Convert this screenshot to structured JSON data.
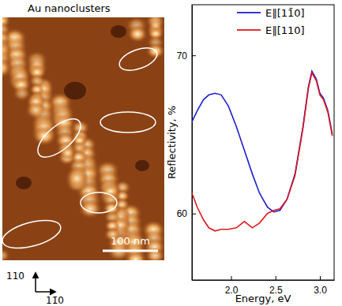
{
  "chart_data": {
    "type": "line",
    "x_label": "Energy, eV",
    "y_label": "Reflectivity, %",
    "x": [
      1.56,
      1.62,
      1.69,
      1.75,
      1.82,
      1.89,
      1.97,
      2.06,
      2.15,
      2.24,
      2.32,
      2.41,
      2.48,
      2.55,
      2.63,
      2.72,
      2.81,
      2.87,
      2.91,
      2.96,
      3.0,
      3.04,
      3.09,
      3.14
    ],
    "series": [
      {
        "name": "E∥[11̄0]",
        "color": "#1f1fd0",
        "values": [
          65.8,
          66.5,
          67.2,
          67.5,
          67.6,
          67.5,
          66.8,
          65.5,
          64.0,
          62.5,
          61.3,
          60.4,
          60.1,
          60.2,
          60.9,
          62.5,
          65.5,
          68.0,
          69.0,
          68.5,
          67.6,
          67.3,
          66.5,
          65.0
        ]
      },
      {
        "name": "E∥[110]",
        "color": "#e0191c",
        "values": [
          61.3,
          60.4,
          59.6,
          59.1,
          58.9,
          59.0,
          59.0,
          59.1,
          59.5,
          59.1,
          59.4,
          60.0,
          60.2,
          60.3,
          60.9,
          62.4,
          65.4,
          67.9,
          68.9,
          68.4,
          67.5,
          67.2,
          66.4,
          64.9
        ]
      }
    ],
    "xlim": [
      1.56,
      3.16
    ],
    "ylim": [
      55.8,
      73.2
    ],
    "xticks": [
      {
        "value": 2,
        "label": "2.0"
      },
      {
        "value": 2.5,
        "label": "2.5"
      },
      {
        "value": 3,
        "label": "3.0"
      }
    ],
    "yticks": [
      60,
      70
    ],
    "legend": "top",
    "grid": false
  },
  "image_panel": {
    "title": "Au nanoclusters",
    "scale_bar": "100 nm",
    "axis_up": "110",
    "axis_right": "11̄0"
  }
}
